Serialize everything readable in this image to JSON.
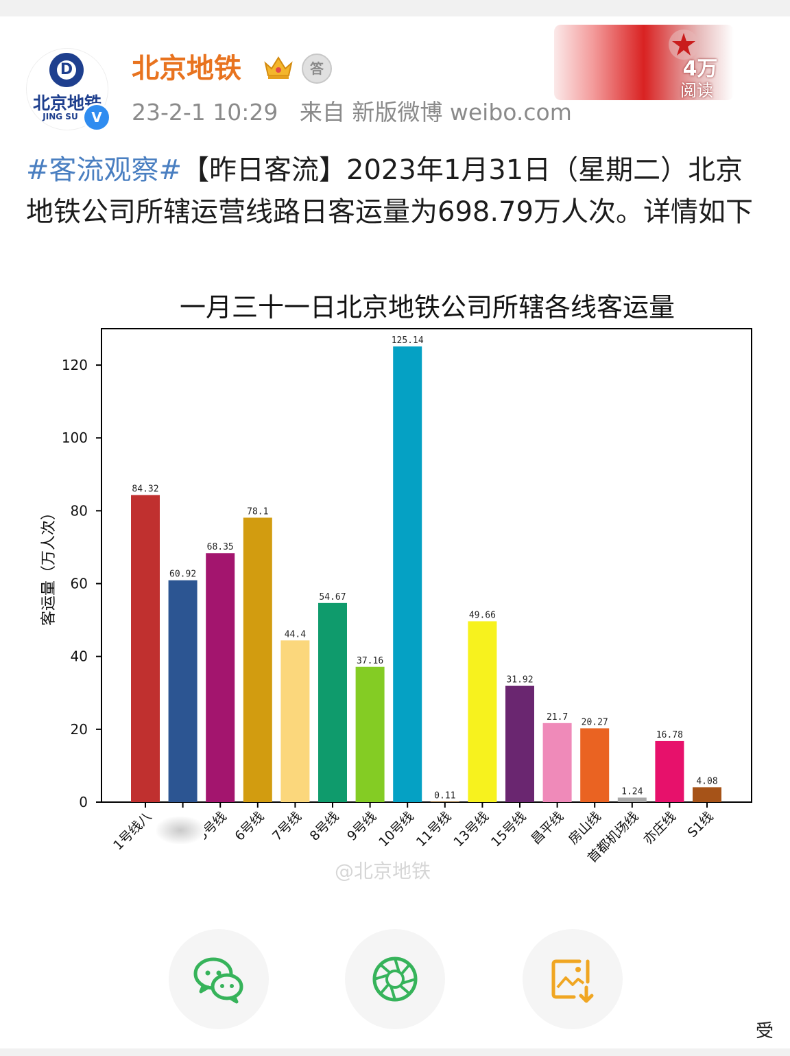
{
  "post": {
    "username": "北京地铁",
    "avatar_text": "北京地铁",
    "avatar_subtext": "JING SU",
    "timestamp": "23-2-1 10:29",
    "source": "来自 新版微博 weibo.com",
    "reads_count": "4万",
    "reads_label": "阅读",
    "hashtag": "#客流观察#",
    "text": "【昨日客流】2023年1月31日（星期二）北京地铁公司所辖运营线路日客运量为698.79万人次。详情如下",
    "watermark": "@北京地铁",
    "corner_char": "受"
  },
  "colors": {
    "username": "#e8731f",
    "hashtag": "#4a7fc1",
    "share_wechat": "#36b35a",
    "share_moments": "#36b35a",
    "save_image": "#f0a622"
  },
  "share": {
    "wechat_icon": "wechat-icon",
    "moments_icon": "moments-icon",
    "save_icon": "save-image-icon"
  },
  "chart_data": {
    "type": "bar",
    "title": "一月三十一日北京地铁公司所辖各线客运量",
    "xlabel": "",
    "ylabel": "客运量（万人次）",
    "ylim": [
      0,
      130
    ],
    "yticks": [
      0,
      20,
      40,
      60,
      80,
      100,
      120
    ],
    "categories": [
      "1号线八通线",
      "2号线",
      "5号线",
      "6号线",
      "7号线",
      "8号线",
      "9号线",
      "10号线",
      "11号线",
      "13号线",
      "15号线",
      "昌平线",
      "房山线",
      "首都机场线",
      "亦庄线",
      "S1线"
    ],
    "tick_labels": [
      "1号线八",
      "",
      "5号线",
      "6号线",
      "7号线",
      "8号线",
      "9号线",
      "10号线",
      "11号线",
      "13号线",
      "15号线",
      "昌平线",
      "房山线",
      "首都机场线",
      "亦庄线",
      "S1线"
    ],
    "values": [
      84.32,
      60.92,
      68.35,
      78.1,
      44.4,
      54.67,
      37.16,
      125.14,
      0.11,
      49.66,
      31.92,
      21.7,
      20.27,
      1.24,
      16.78,
      4.08
    ],
    "value_labels": [
      "84.32",
      "60.92",
      "68.35",
      "78.1",
      "44.4",
      "54.67",
      "37.16",
      "125.14",
      "0.11",
      "49.66",
      "31.92",
      "21.7",
      "20.27",
      "1.24",
      "16.78",
      "4.08"
    ],
    "bar_colors": [
      "#c0302f",
      "#2c5592",
      "#a3156e",
      "#d29c10",
      "#fbd77c",
      "#0f9b6c",
      "#84cc24",
      "#05a1c4",
      "#f0a22e",
      "#f7f21e",
      "#6a2670",
      "#ef8ab9",
      "#ea6322",
      "#a8a8a8",
      "#e7116b",
      "#a65318"
    ],
    "grid": false,
    "legend": "none"
  }
}
